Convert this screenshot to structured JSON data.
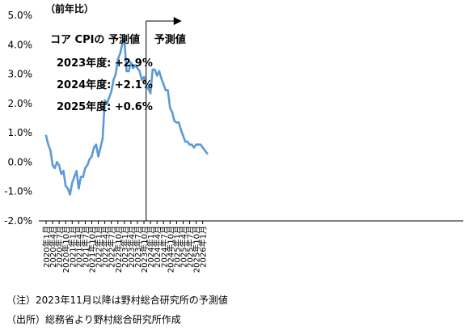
{
  "chart_data": {
    "type": "line",
    "unit_label": "（前年比）",
    "y_axis": {
      "min": -2.0,
      "max": 5.0,
      "ticks": [
        5.0,
        4.0,
        3.0,
        2.0,
        1.0,
        0.0,
        -1.0,
        -2.0
      ],
      "tick_labels": [
        "5.0%",
        "4.0%",
        "3.0%",
        "2.0%",
        "1.0%",
        "0.0%",
        "-1.0%",
        "-2.0%"
      ]
    },
    "x_tick_labels": [
      "2020年1月",
      "2020年4月",
      "2020年7月",
      "2020年10月",
      "2021年1月",
      "2021年4月",
      "2021年7月",
      "2021年10月",
      "2022年1月",
      "2022年4月",
      "2022年7月",
      "2022年10月",
      "2023年1月",
      "2023年4月",
      "2023年7月",
      "2023年10月",
      "2024年1月",
      "2024年4月",
      "2024年7月",
      "2024年10月",
      "2025年1月",
      "2025年4月",
      "2025年7月",
      "2025年10月",
      "2026年1月"
    ],
    "series": [
      {
        "color": "#5b9bd5",
        "start": "2020-01",
        "values": [
          0.9,
          0.6,
          0.4,
          -0.1,
          -0.2,
          0.0,
          -0.1,
          -0.4,
          -0.3,
          -0.8,
          -0.9,
          -1.1,
          -0.7,
          -0.5,
          -0.3,
          -0.9,
          -0.5,
          -0.5,
          -0.2,
          -0.1,
          0.1,
          0.2,
          0.5,
          0.6,
          0.2,
          0.5,
          0.8,
          2.1,
          2.0,
          2.2,
          2.4,
          2.8,
          3.0,
          3.5,
          3.7,
          4.0,
          4.2,
          3.1,
          3.1,
          3.4,
          3.2,
          3.3,
          3.2,
          3.1,
          2.8,
          2.9,
          2.6,
          2.5,
          2.35,
          3.15,
          3.15,
          2.95,
          3.1,
          2.85,
          2.65,
          2.45,
          2.45,
          1.85,
          1.7,
          1.4,
          1.35,
          1.35,
          1.1,
          0.9,
          0.7,
          0.7,
          0.6,
          0.6,
          0.5,
          0.6,
          0.6,
          0.6,
          0.5,
          0.4,
          0.3
        ]
      }
    ],
    "forecast_start": "2023年11月",
    "forecast_label": "予測値",
    "annotation": {
      "title": "コア CPIの 予測値",
      "lines": [
        "2023年度: +2.9%",
        "2024年度: +2.1%",
        "2025年度: +0.6%"
      ]
    },
    "grid": false,
    "legend": "none"
  },
  "notes": {
    "note1": "（注）2023年11月以降は野村総合研究所の予測値",
    "note2": "（出所）総務省より野村総合研究所作成"
  }
}
